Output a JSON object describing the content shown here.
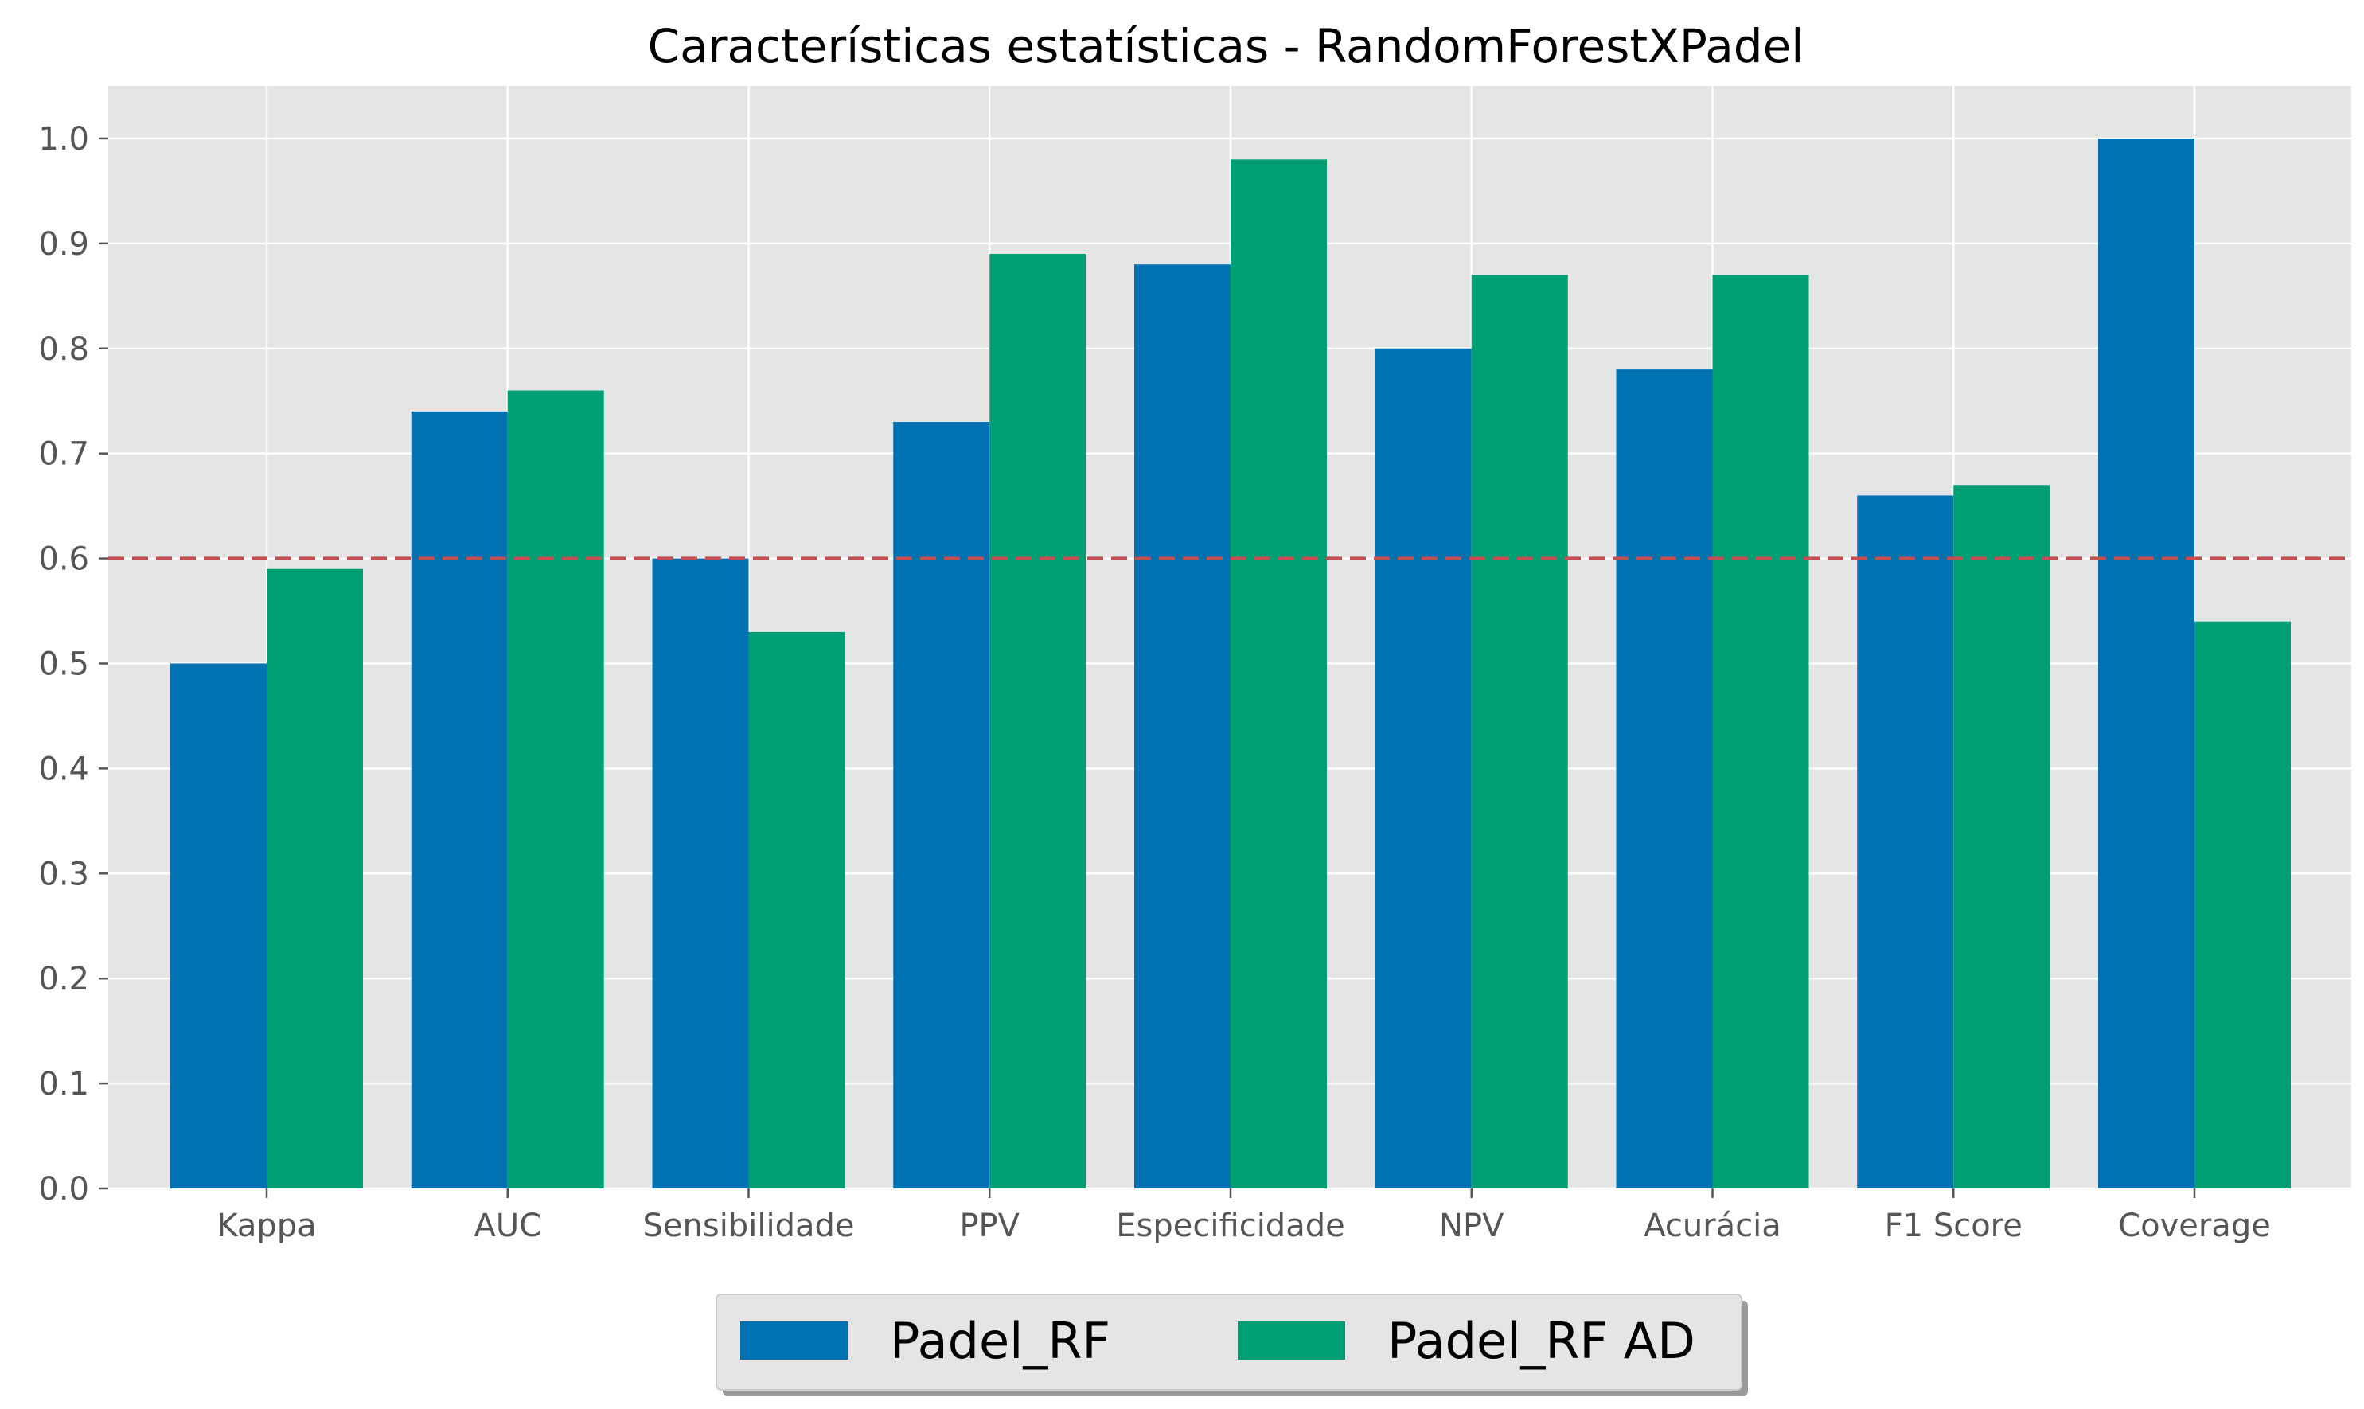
{
  "chart_data": {
    "type": "bar",
    "title": "Características estatísticas - RandomForestXPadel",
    "xlabel": "",
    "ylabel": "",
    "categories": [
      "Kappa",
      "AUC",
      "Sensibilidade",
      "PPV",
      "Especificidade",
      "NPV",
      "Acurácia",
      "F1 Score",
      "Coverage"
    ],
    "series": [
      {
        "name": "Padel_RF",
        "color": "#0072B2",
        "values": [
          0.5,
          0.74,
          0.6,
          0.73,
          0.88,
          0.8,
          0.78,
          0.66,
          1.0
        ]
      },
      {
        "name": "Padel_RF AD",
        "color": "#009E73",
        "values": [
          0.59,
          0.76,
          0.53,
          0.89,
          0.98,
          0.87,
          0.87,
          0.67,
          0.54
        ]
      }
    ],
    "ylim": [
      0,
      1.05
    ],
    "yticks": [
      "0.0",
      "0.1",
      "0.2",
      "0.3",
      "0.4",
      "0.5",
      "0.6",
      "0.7",
      "0.8",
      "0.9",
      "1.0"
    ],
    "reference_line": {
      "y": 0.6,
      "style": "dashed",
      "color": "#C44E52"
    },
    "grid": true,
    "background": "#E5E5E5",
    "legend_position": "bottom-center"
  }
}
